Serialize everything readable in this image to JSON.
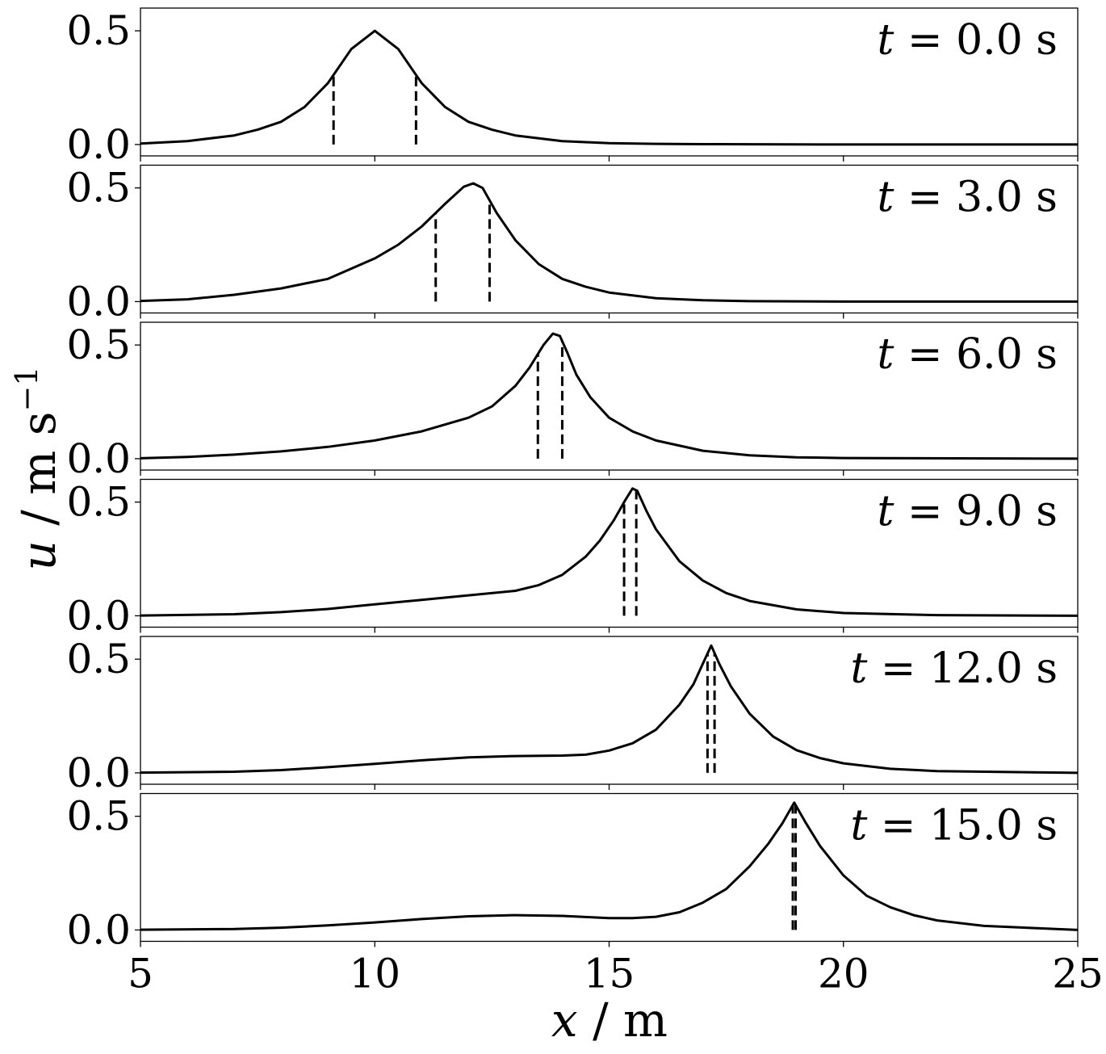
{
  "chart_data": {
    "type": "line",
    "xlabel": "x / m",
    "ylabel": "u / m s^-1",
    "ylabel_parts": {
      "var": "u",
      "unit": " / m s",
      "exp": "−1"
    },
    "xlabel_parts": {
      "var": "x",
      "unit": " / m"
    },
    "xlim": [
      5,
      25
    ],
    "ylim": [
      -0.05,
      0.6
    ],
    "xticks": [
      5,
      10,
      15,
      20,
      25
    ],
    "xtick_labels": [
      "5",
      "10",
      "15",
      "20",
      "25"
    ],
    "yticks": [
      0.0,
      0.5
    ],
    "ytick_labels": [
      "0.0",
      "0.5"
    ],
    "grid": false,
    "line_color": "#000000",
    "panels": [
      {
        "label": "t = 0.0 s",
        "time_text": "0.0",
        "dashed_x": [
          9.12,
          10.88
        ],
        "x": [
          5,
          6,
          7,
          7.5,
          8,
          8.5,
          9,
          9.5,
          10,
          10.5,
          11,
          11.5,
          12,
          12.5,
          13,
          14,
          15,
          16,
          17,
          18,
          20,
          25
        ],
        "y": [
          0.004,
          0.015,
          0.04,
          0.065,
          0.1,
          0.165,
          0.27,
          0.42,
          0.5,
          0.42,
          0.27,
          0.165,
          0.1,
          0.065,
          0.04,
          0.015,
          0.006,
          0.003,
          0.0015,
          0.001,
          0.0,
          0.0
        ]
      },
      {
        "label": "t = 3.0 s",
        "time_text": "3.0",
        "dashed_x": [
          11.3,
          12.45
        ],
        "x": [
          5,
          6,
          7,
          8,
          9,
          10,
          10.5,
          11,
          11.5,
          11.9,
          12.1,
          12.3,
          12.6,
          13,
          13.5,
          14,
          14.5,
          15,
          16,
          17,
          18,
          20,
          25
        ],
        "y": [
          0.003,
          0.01,
          0.03,
          0.058,
          0.1,
          0.19,
          0.25,
          0.33,
          0.43,
          0.505,
          0.52,
          0.5,
          0.39,
          0.27,
          0.165,
          0.1,
          0.065,
          0.04,
          0.015,
          0.006,
          0.002,
          0.0,
          0.0
        ]
      },
      {
        "label": "t = 6.0 s",
        "time_text": "6.0",
        "dashed_x": [
          13.48,
          14.0
        ],
        "x": [
          5,
          6,
          7,
          8,
          9,
          10,
          11,
          12,
          12.5,
          13,
          13.3,
          13.6,
          13.8,
          13.95,
          14.1,
          14.3,
          14.6,
          15,
          15.5,
          16,
          17,
          18,
          19,
          20,
          25
        ],
        "y": [
          0.002,
          0.008,
          0.018,
          0.032,
          0.052,
          0.08,
          0.12,
          0.18,
          0.23,
          0.32,
          0.4,
          0.5,
          0.55,
          0.54,
          0.47,
          0.37,
          0.27,
          0.18,
          0.12,
          0.08,
          0.035,
          0.015,
          0.006,
          0.003,
          0.0
        ]
      },
      {
        "label": "t = 9.0 s",
        "time_text": "9.0",
        "dashed_x": [
          15.32,
          15.58
        ],
        "x": [
          5,
          7,
          8,
          9,
          10,
          11,
          12,
          13,
          13.5,
          14,
          14.5,
          14.8,
          15.1,
          15.35,
          15.5,
          15.6,
          15.8,
          16,
          16.5,
          17,
          17.5,
          18,
          19,
          20,
          22,
          25
        ],
        "y": [
          0.001,
          0.007,
          0.016,
          0.03,
          0.05,
          0.07,
          0.09,
          0.11,
          0.135,
          0.18,
          0.26,
          0.33,
          0.42,
          0.51,
          0.56,
          0.55,
          0.46,
          0.38,
          0.24,
          0.155,
          0.1,
          0.065,
          0.028,
          0.012,
          0.003,
          0.0
        ]
      },
      {
        "label": "t = 12.0 s",
        "time_text": "12.0",
        "dashed_x": [
          17.1,
          17.25
        ],
        "x": [
          5,
          7,
          8,
          9,
          10,
          11,
          12,
          13,
          14,
          14.5,
          15,
          15.5,
          16,
          16.5,
          16.8,
          17.0,
          17.18,
          17.35,
          17.6,
          18,
          18.5,
          19,
          19.5,
          20,
          21,
          22,
          25
        ],
        "y": [
          0.001,
          0.005,
          0.012,
          0.025,
          0.04,
          0.055,
          0.068,
          0.074,
          0.076,
          0.08,
          0.098,
          0.13,
          0.19,
          0.3,
          0.39,
          0.48,
          0.56,
          0.48,
          0.38,
          0.26,
          0.16,
          0.1,
          0.065,
          0.042,
          0.018,
          0.008,
          0.0
        ]
      },
      {
        "label": "t = 15.0 s",
        "time_text": "15.0",
        "dashed_x": [
          18.92,
          18.98
        ],
        "x": [
          5,
          7,
          8,
          9,
          10,
          11,
          12,
          13,
          14,
          15,
          15.5,
          16,
          16.5,
          17,
          17.5,
          18,
          18.4,
          18.7,
          18.95,
          19.2,
          19.5,
          20,
          20.5,
          21,
          21.5,
          22,
          23,
          25
        ],
        "y": [
          0.001,
          0.004,
          0.01,
          0.02,
          0.033,
          0.048,
          0.06,
          0.065,
          0.062,
          0.052,
          0.052,
          0.058,
          0.078,
          0.12,
          0.18,
          0.28,
          0.38,
          0.47,
          0.56,
          0.47,
          0.37,
          0.24,
          0.15,
          0.1,
          0.065,
          0.042,
          0.018,
          0.0
        ]
      }
    ]
  }
}
